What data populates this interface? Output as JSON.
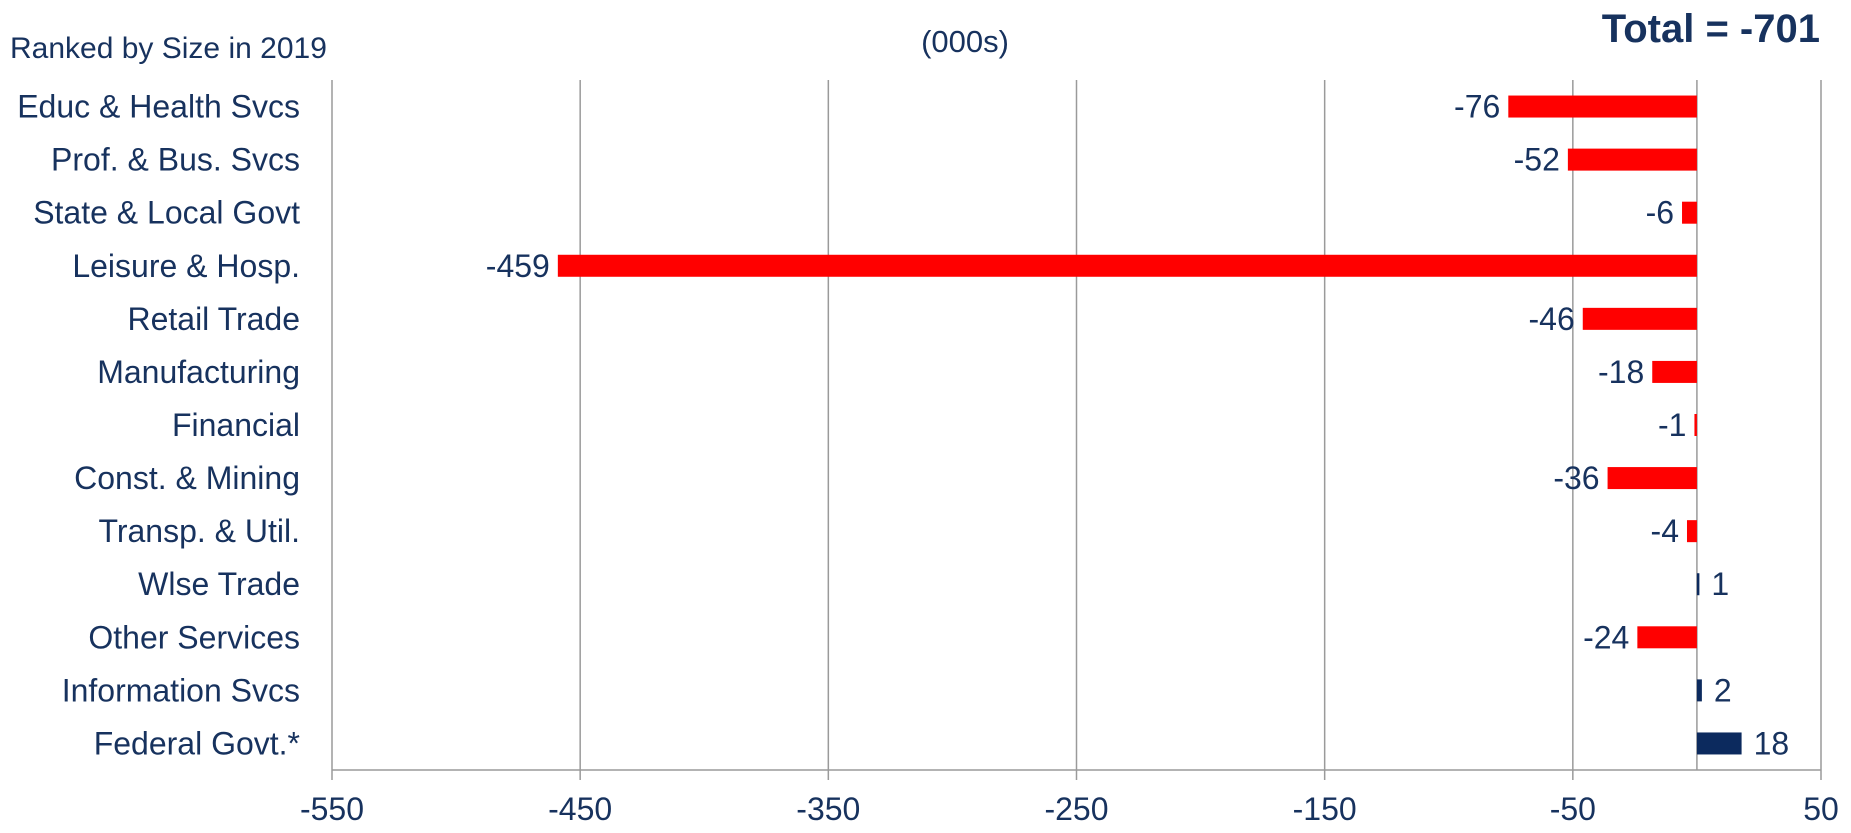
{
  "header_note": "Ranked by Size in 2019",
  "unit_label": "(000s)",
  "total_label": "Total = -701",
  "colors": {
    "negative": "#ff0000",
    "positive": "#0c2a5e",
    "text": "#17325e",
    "grid": "#9a9a9a"
  },
  "chart_data": {
    "type": "bar",
    "orientation": "horizontal",
    "categories": [
      "Educ & Health Svcs",
      "Prof. & Bus. Svcs",
      "State & Local Govt",
      "Leisure & Hosp.",
      "Retail Trade",
      "Manufacturing",
      "Financial",
      "Const. & Mining",
      "Transp. & Util.",
      "Wlse Trade",
      "Other Services",
      "Information Svcs",
      "Federal Govt.*"
    ],
    "values": [
      -76,
      -52,
      -6,
      -459,
      -46,
      -18,
      -1,
      -36,
      -4,
      1,
      -24,
      2,
      18
    ],
    "data_labels": [
      "-76",
      "-52",
      "-6",
      "-459",
      "-46",
      "-18",
      "-1",
      "-36",
      "-4",
      "1",
      "-24",
      "2",
      "18"
    ],
    "xlim": [
      -550,
      50
    ],
    "xticks": [
      -550,
      -450,
      -350,
      -250,
      -150,
      -50,
      50
    ],
    "xtick_labels": [
      "-550",
      "-450",
      "-350",
      "-250",
      "-150",
      "-50",
      "50"
    ],
    "grid": true,
    "legend": false
  }
}
